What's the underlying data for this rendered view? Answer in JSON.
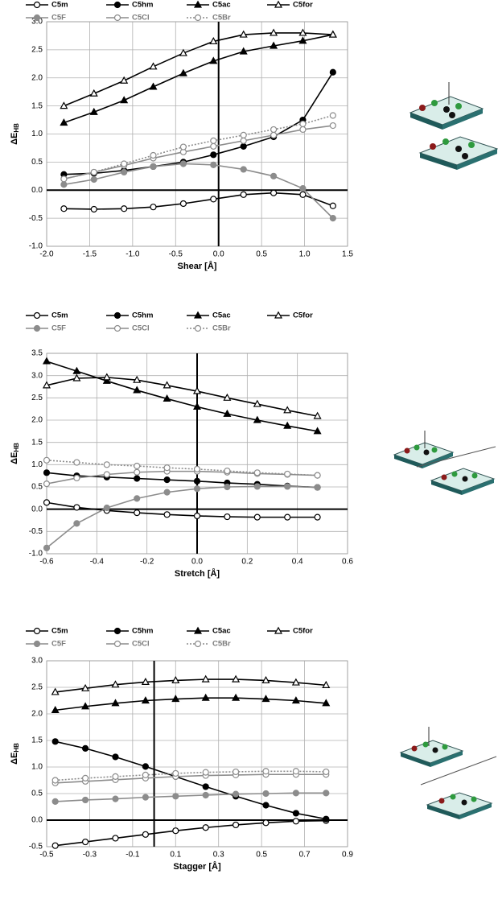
{
  "chart_data": [
    {
      "type": "line",
      "xlabel": "Shear [Å]",
      "ylabel": "ΔE",
      "ylabel_subscript": "HB",
      "grid": true,
      "xlim": [
        -2.0,
        1.5
      ],
      "xticks": [
        {
          "value": -2.0,
          "label": "-2.0"
        },
        -1.5,
        {
          "value": -1.0,
          "label": "-1.0"
        },
        -0.5,
        {
          "value": 0.0,
          "label": "0.0"
        },
        0.5,
        {
          "value": 1.0,
          "label": "1.0"
        },
        1.5
      ],
      "ylim": [
        -1.0,
        3.0
      ],
      "yticks": [
        {
          "value": -1.0,
          "label": "-1.0"
        },
        -0.5,
        {
          "value": 0.0,
          "label": "0.0"
        },
        0.5,
        {
          "value": 1.0,
          "label": "1.0"
        },
        1.5,
        {
          "value": 2.0,
          "label": "2.0"
        },
        2.5,
        {
          "value": 3.0,
          "label": "3.0"
        }
      ],
      "x": [
        -1.8,
        -1.45,
        -1.1,
        -0.76,
        -0.41,
        -0.06,
        0.29,
        0.64,
        0.98,
        1.33
      ],
      "series": [
        {
          "name": "C5m",
          "color": "#000000",
          "marker": "open-circle",
          "values": [
            -0.33,
            -0.34,
            -0.33,
            -0.3,
            -0.24,
            -0.16,
            -0.08,
            -0.05,
            -0.08,
            -0.28
          ]
        },
        {
          "name": "C5hm",
          "color": "#000000",
          "marker": "circle",
          "values": [
            0.28,
            0.3,
            0.35,
            0.42,
            0.5,
            0.63,
            0.78,
            0.95,
            1.25,
            2.1
          ]
        },
        {
          "name": "C5ac",
          "color": "#000000",
          "marker": "triangle",
          "values": [
            1.2,
            1.39,
            1.6,
            1.84,
            2.08,
            2.3,
            2.47,
            2.57,
            2.66,
            2.77
          ]
        },
        {
          "name": "C5for",
          "color": "#000000",
          "marker": "open-triangle",
          "values": [
            1.5,
            1.72,
            1.95,
            2.2,
            2.44,
            2.65,
            2.77,
            2.8,
            2.8,
            2.77
          ]
        },
        {
          "name": "C5F",
          "color": "#8c8c8c",
          "marker": "circle",
          "values": [
            0.1,
            0.19,
            0.32,
            0.42,
            0.47,
            0.45,
            0.37,
            0.25,
            0.03,
            -0.5
          ]
        },
        {
          "name": "C5Cl",
          "color": "#8c8c8c",
          "marker": "open-circle",
          "values": [
            0.2,
            0.32,
            0.44,
            0.57,
            0.68,
            0.78,
            0.88,
            0.98,
            1.08,
            1.15
          ]
        },
        {
          "name": "C5Br",
          "color": "#8c8c8c",
          "marker": "open-circle",
          "dashed": true,
          "values": [
            0.2,
            0.32,
            0.47,
            0.62,
            0.77,
            0.88,
            0.98,
            1.08,
            1.18,
            1.33
          ]
        }
      ]
    },
    {
      "type": "line",
      "xlabel": "Stretch [Å]",
      "ylabel": "ΔE",
      "ylabel_subscript": "HB",
      "grid": true,
      "xlim": [
        -0.6,
        0.6
      ],
      "xticks": [
        -0.6,
        -0.4,
        -0.2,
        {
          "value": 0.0,
          "label": "0.0"
        },
        0.2,
        0.4,
        0.6
      ],
      "ylim": [
        -1.0,
        3.5
      ],
      "yticks": [
        {
          "value": -1.0,
          "label": "-1.0"
        },
        -0.5,
        {
          "value": 0.0,
          "label": "0.0"
        },
        0.5,
        {
          "value": 1.0,
          "label": "1.0"
        },
        1.5,
        {
          "value": 2.0,
          "label": "2.0"
        },
        2.5,
        {
          "value": 3.0,
          "label": "3.0"
        },
        3.5
      ],
      "x": [
        -0.6,
        -0.48,
        -0.36,
        -0.24,
        -0.12,
        0.0,
        0.12,
        0.24,
        0.36,
        0.48
      ],
      "series": [
        {
          "name": "C5m",
          "color": "#000000",
          "marker": "open-circle",
          "values": [
            0.15,
            0.04,
            -0.03,
            -0.08,
            -0.12,
            -0.15,
            -0.17,
            -0.18,
            -0.18,
            -0.18
          ]
        },
        {
          "name": "C5hm",
          "color": "#000000",
          "marker": "circle",
          "values": [
            0.82,
            0.75,
            0.72,
            0.69,
            0.66,
            0.63,
            0.59,
            0.56,
            0.52,
            0.49
          ]
        },
        {
          "name": "C5ac",
          "color": "#000000",
          "marker": "triangle",
          "values": [
            3.32,
            3.1,
            2.88,
            2.67,
            2.48,
            2.3,
            2.14,
            2.0,
            1.87,
            1.75
          ]
        },
        {
          "name": "C5for",
          "color": "#000000",
          "marker": "open-triangle",
          "values": [
            2.78,
            2.94,
            2.96,
            2.9,
            2.78,
            2.65,
            2.5,
            2.36,
            2.22,
            2.09
          ]
        },
        {
          "name": "C5F",
          "color": "#8c8c8c",
          "marker": "circle",
          "values": [
            -0.87,
            -0.32,
            0.03,
            0.24,
            0.38,
            0.46,
            0.5,
            0.51,
            0.51,
            0.49
          ]
        },
        {
          "name": "C5Cl",
          "color": "#8c8c8c",
          "marker": "open-circle",
          "values": [
            0.57,
            0.7,
            0.78,
            0.83,
            0.85,
            0.85,
            0.83,
            0.8,
            0.78,
            0.76
          ]
        },
        {
          "name": "C5Br",
          "color": "#8c8c8c",
          "marker": "open-circle",
          "dashed": true,
          "values": [
            1.1,
            1.05,
            1.0,
            0.97,
            0.93,
            0.9,
            0.86,
            0.82,
            0.79,
            0.76
          ]
        }
      ]
    },
    {
      "type": "line",
      "xlabel": "Stagger [Å]",
      "ylabel": "ΔE",
      "ylabel_subscript": "HB",
      "grid": true,
      "xlim": [
        -0.5,
        0.9
      ],
      "xticks": [
        -0.5,
        -0.3,
        -0.1,
        0.1,
        0.3,
        0.5,
        0.7,
        0.9
      ],
      "ylim": [
        -0.5,
        3.0
      ],
      "yticks": [
        -0.5,
        {
          "value": 0.0,
          "label": "0.0"
        },
        0.5,
        {
          "value": 1.0,
          "label": "1.0"
        },
        1.5,
        {
          "value": 2.0,
          "label": "2.0"
        },
        2.5,
        {
          "value": 3.0,
          "label": "3.0"
        }
      ],
      "x": [
        -0.46,
        -0.32,
        -0.18,
        -0.04,
        0.1,
        0.24,
        0.38,
        0.52,
        0.66,
        0.8
      ],
      "series": [
        {
          "name": "C5m",
          "color": "#000000",
          "marker": "open-circle",
          "values": [
            -0.48,
            -0.41,
            -0.34,
            -0.27,
            -0.2,
            -0.14,
            -0.09,
            -0.05,
            -0.02,
            -0.01
          ]
        },
        {
          "name": "C5hm",
          "color": "#000000",
          "marker": "circle",
          "values": [
            1.48,
            1.35,
            1.19,
            1.01,
            0.82,
            0.63,
            0.45,
            0.28,
            0.13,
            0.02
          ]
        },
        {
          "name": "C5ac",
          "color": "#000000",
          "marker": "triangle",
          "values": [
            2.07,
            2.14,
            2.2,
            2.25,
            2.28,
            2.3,
            2.3,
            2.28,
            2.25,
            2.2
          ]
        },
        {
          "name": "C5for",
          "color": "#000000",
          "marker": "open-triangle",
          "values": [
            2.41,
            2.48,
            2.55,
            2.6,
            2.63,
            2.65,
            2.65,
            2.63,
            2.59,
            2.54
          ]
        },
        {
          "name": "C5F",
          "color": "#8c8c8c",
          "marker": "circle",
          "values": [
            0.35,
            0.38,
            0.4,
            0.43,
            0.45,
            0.47,
            0.49,
            0.5,
            0.51,
            0.51
          ]
        },
        {
          "name": "C5Cl",
          "color": "#8c8c8c",
          "marker": "open-circle",
          "values": [
            0.7,
            0.73,
            0.76,
            0.79,
            0.82,
            0.84,
            0.85,
            0.86,
            0.86,
            0.86
          ]
        },
        {
          "name": "C5Br",
          "color": "#8c8c8c",
          "marker": "open-circle",
          "dashed": true,
          "values": [
            0.75,
            0.79,
            0.82,
            0.85,
            0.88,
            0.9,
            0.91,
            0.92,
            0.92,
            0.91
          ]
        }
      ]
    }
  ]
}
